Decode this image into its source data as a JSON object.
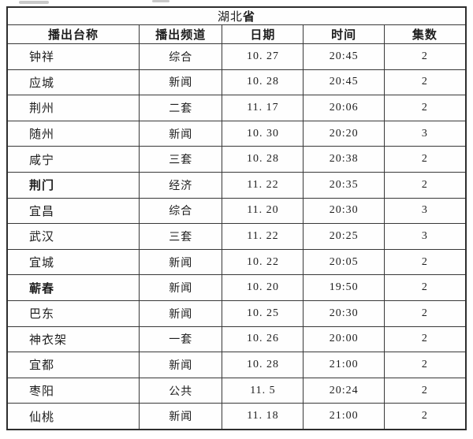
{
  "table": {
    "title": {
      "normal": "湖北",
      "bold": "省"
    },
    "columns": [
      "播出台称",
      "播出频道",
      "日期",
      "时间",
      "集数"
    ],
    "rows": [
      {
        "station": "钟祥",
        "bold": false,
        "channel": "综合",
        "date": "10. 27",
        "time": "20:45",
        "episodes": "2"
      },
      {
        "station": "应城",
        "bold": false,
        "channel": "新闻",
        "date": "10. 28",
        "time": "20:45",
        "episodes": "2"
      },
      {
        "station": "荆州",
        "bold": false,
        "channel": "二套",
        "date": "11. 17",
        "time": "20:06",
        "episodes": "2"
      },
      {
        "station": "随州",
        "bold": false,
        "channel": "新闻",
        "date": "10. 30",
        "time": "20:20",
        "episodes": "3"
      },
      {
        "station": "咸宁",
        "bold": false,
        "channel": "三套",
        "date": "10. 28",
        "time": "20:38",
        "episodes": "2"
      },
      {
        "station": "荆门",
        "bold": true,
        "channel": "经济",
        "date": "11. 22",
        "time": "20:35",
        "episodes": "2"
      },
      {
        "station": "宜昌",
        "bold": false,
        "channel": "综合",
        "date": "11. 20",
        "time": "20:30",
        "episodes": "3"
      },
      {
        "station": "武汉",
        "bold": false,
        "channel": "三套",
        "date": "11. 22",
        "time": "20:25",
        "episodes": "3"
      },
      {
        "station": "宜城",
        "bold": false,
        "channel": "新闻",
        "date": "10. 22",
        "time": "20:05",
        "episodes": "2"
      },
      {
        "station": "蕲春",
        "bold": true,
        "channel": "新闻",
        "date": "10. 20",
        "time": "19:50",
        "episodes": "2"
      },
      {
        "station": "巴东",
        "bold": false,
        "channel": "新闻",
        "date": "10. 25",
        "time": "20:30",
        "episodes": "2"
      },
      {
        "station": "神衣架",
        "bold": false,
        "channel": "一套",
        "date": "10. 26",
        "time": "20:00",
        "episodes": "2"
      },
      {
        "station": "宜都",
        "bold": false,
        "channel": "新闻",
        "date": "10. 28",
        "time": "21:00",
        "episodes": "2"
      },
      {
        "station": "枣阳",
        "bold": false,
        "channel": "公共",
        "date": "11. 5",
        "time": "20:24",
        "episodes": "2"
      },
      {
        "station": "仙桃",
        "bold": false,
        "channel": "新闻",
        "date": "11. 18",
        "time": "21:00",
        "episodes": "2"
      }
    ]
  },
  "colors": {
    "background": "#ffffff",
    "border": "#383838",
    "text": "#1d1d1d"
  }
}
